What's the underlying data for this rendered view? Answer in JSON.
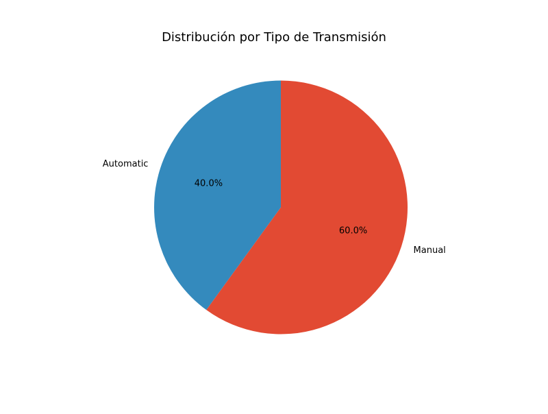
{
  "chart_data": {
    "type": "pie",
    "title": "Distribución por Tipo de Transmisión",
    "slices": [
      {
        "label": "Automatic",
        "value": 40.0,
        "pct_label": "40.0%",
        "color": "#348ABD"
      },
      {
        "label": "Manual",
        "value": 60.0,
        "pct_label": "60.0%",
        "color": "#E24A33"
      }
    ],
    "start_angle_deg": 90,
    "direction": "counterclockwise"
  }
}
